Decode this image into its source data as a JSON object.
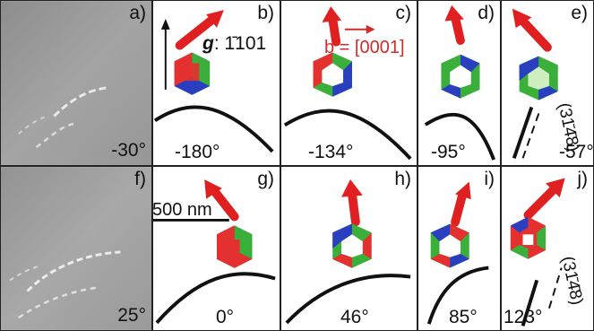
{
  "panels": {
    "a": {
      "label": "a)",
      "angle": "-30°"
    },
    "b": {
      "label": "b)",
      "angle": "-180°"
    },
    "c": {
      "label": "c)",
      "angle": "-134°"
    },
    "d": {
      "label": "d)",
      "angle": "-95°"
    },
    "e": {
      "label": "e)",
      "angle": "-57°"
    },
    "f": {
      "label": "f)",
      "angle": "25°"
    },
    "g": {
      "label": "g)",
      "angle": "0°"
    },
    "h": {
      "label": "h)",
      "angle": "46°"
    },
    "i": {
      "label": "i)",
      "angle": "85°"
    },
    "j": {
      "label": "j)",
      "angle": "123°"
    }
  },
  "annotations": {
    "g_symbol": "g",
    "g_index": ": 1̄101",
    "b_vector": "b = [0001]",
    "plane_e": "(31̄4̄8)",
    "plane_j": "(31̄4̄8)",
    "scale_bar": "500 nm"
  },
  "colors": {
    "arrow": "#e02020",
    "hex_red": "#e53030",
    "hex_green": "#3ab03a",
    "hex_blue": "#2a3fbf",
    "hex_light": "#cfeec0",
    "curve": "#111111"
  }
}
